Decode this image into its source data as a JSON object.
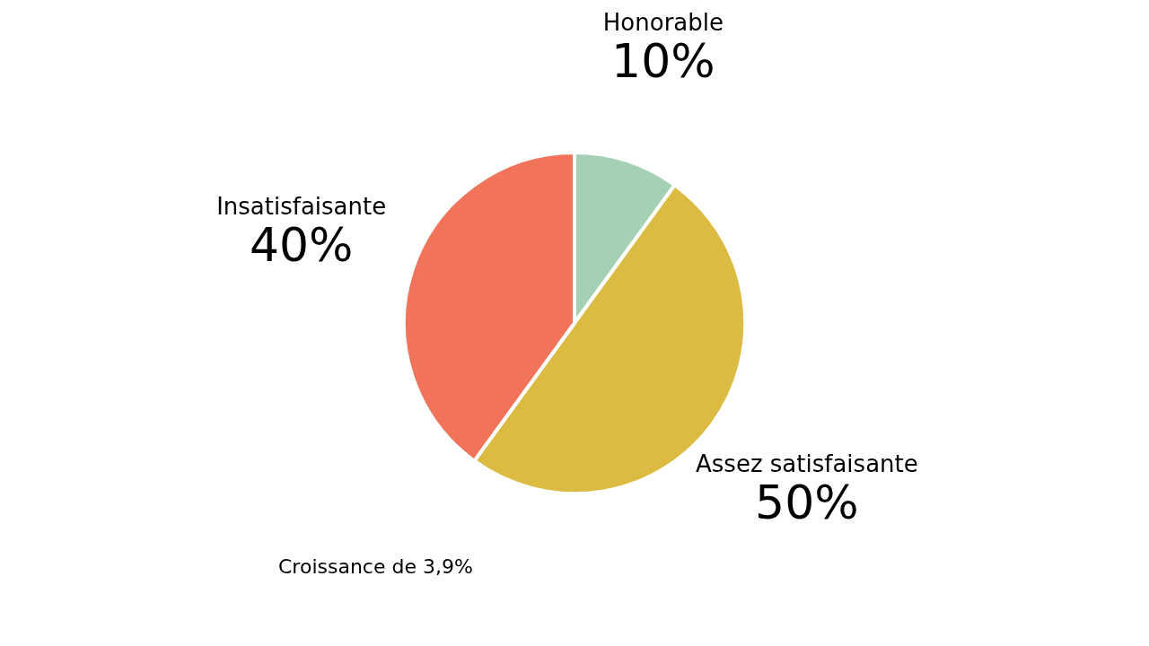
{
  "chart_data": {
    "type": "pie",
    "categories": [
      "Honorable",
      "Assez satisfaisante",
      "Insatisfaisante"
    ],
    "values": [
      10,
      50,
      40
    ],
    "colors": [
      "#a5d0b4",
      "#dbbb41",
      "#f0735a"
    ],
    "value_labels": [
      "10%",
      "50%",
      "40%"
    ],
    "annotations": [
      "Croissance de 3,9%"
    ]
  }
}
